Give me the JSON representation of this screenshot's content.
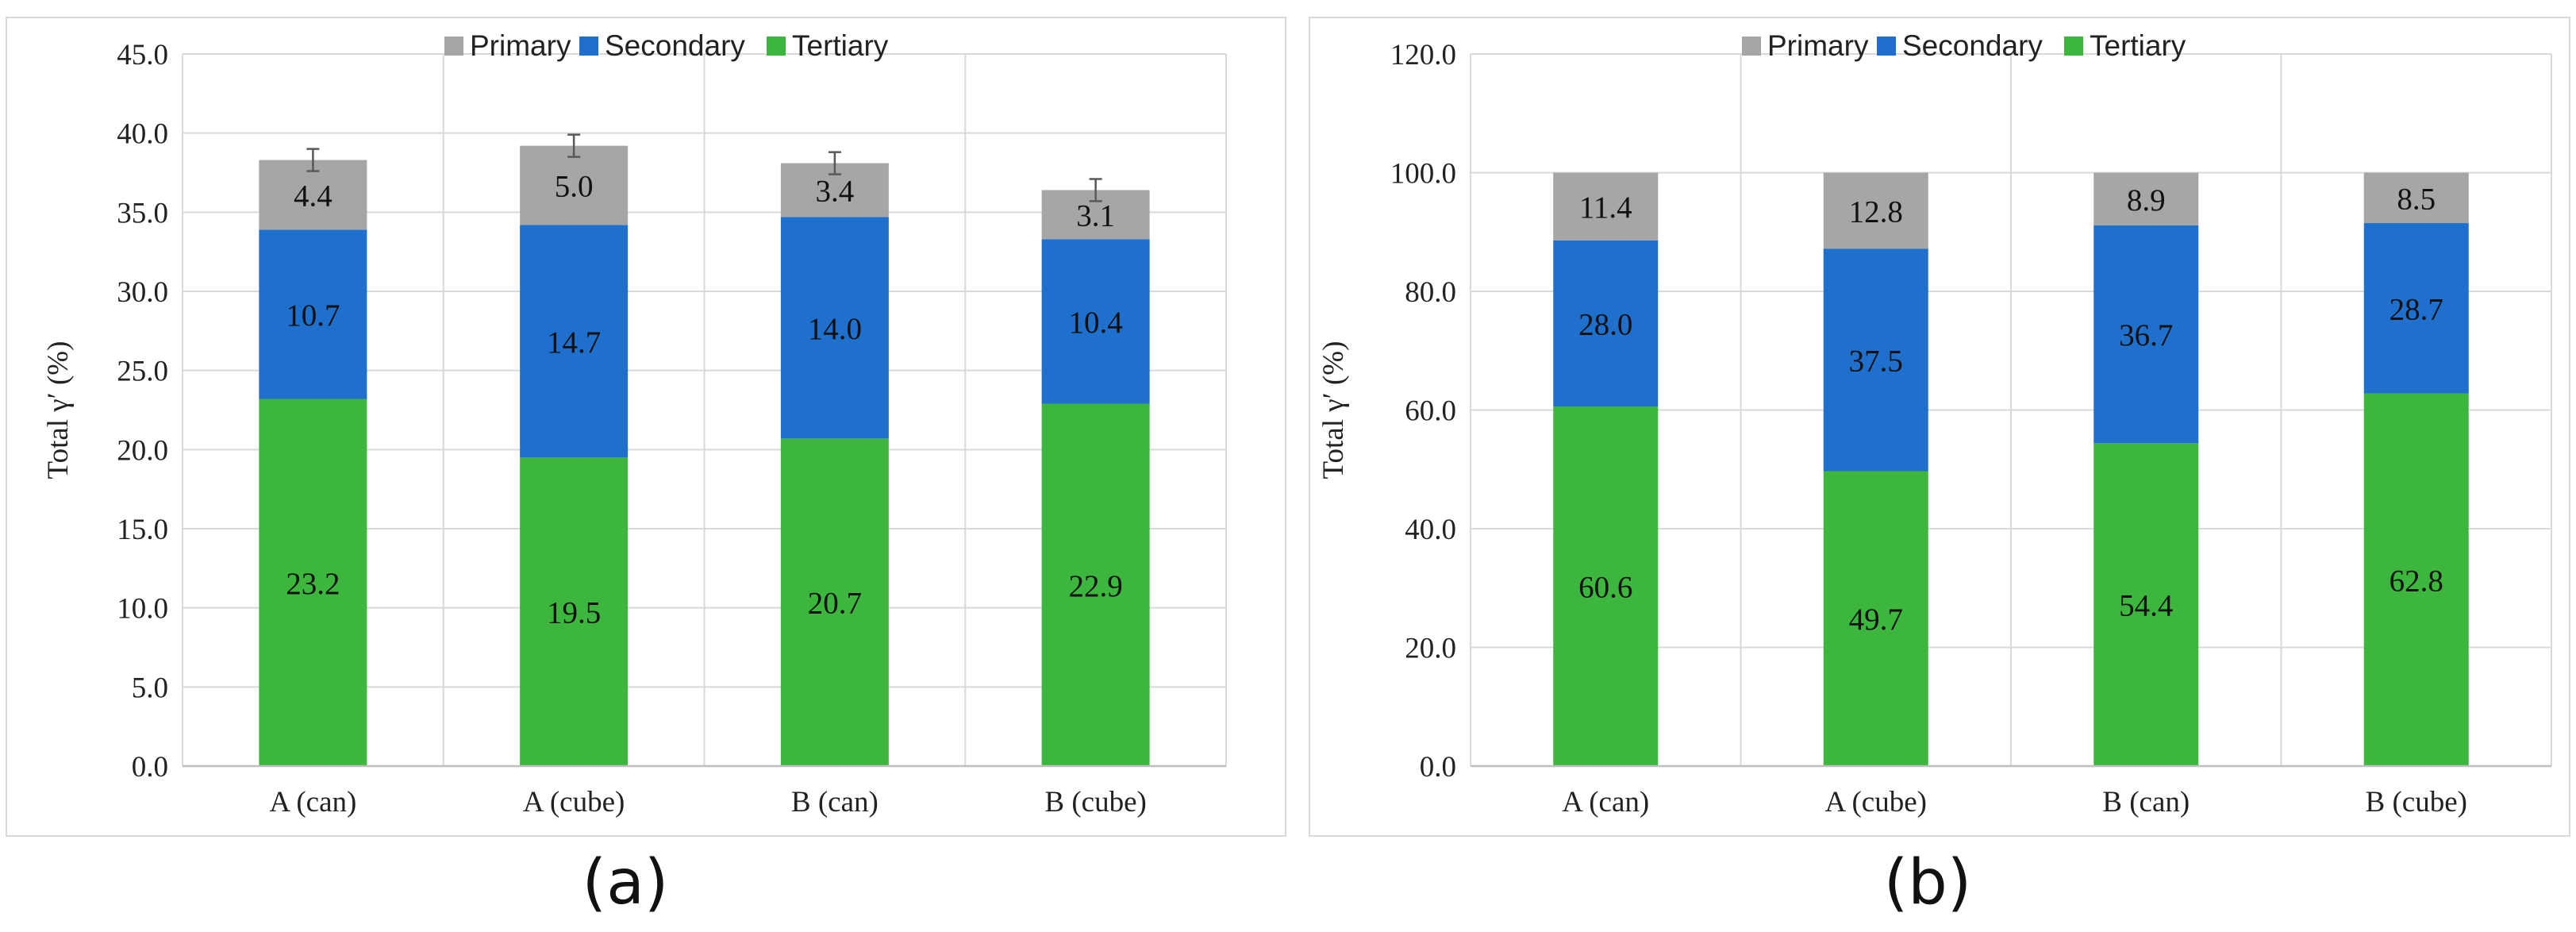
{
  "chart_data": [
    {
      "type": "bar",
      "stacked": true,
      "panel_label": "(a)",
      "ylabel": "Total γ′ (%)",
      "ylim": [
        0,
        45
      ],
      "ytick_step": 5,
      "yticks": [
        "0.0",
        "5.0",
        "10.0",
        "15.0",
        "20.0",
        "25.0",
        "30.0",
        "35.0",
        "40.0",
        "45.0"
      ],
      "categories": [
        "A (can)",
        "A (cube)",
        "B (can)",
        "B (cube)"
      ],
      "series": [
        {
          "name": "Tertiary",
          "color": "#3db63d",
          "values": [
            23.2,
            19.5,
            20.7,
            22.9
          ],
          "labels": [
            "23.2",
            "19.5",
            "20.7",
            "22.9"
          ]
        },
        {
          "name": "Secondary",
          "color": "#1f6fcc",
          "values": [
            10.7,
            14.7,
            14.0,
            10.4
          ],
          "labels": [
            "10.7",
            "14.7",
            "14.0",
            "10.4"
          ]
        },
        {
          "name": "Primary",
          "color": "#a6a6a6",
          "values": [
            4.4,
            5.0,
            3.4,
            3.1
          ],
          "labels": [
            "4.4",
            "5.0",
            "3.4",
            "3.1"
          ]
        }
      ],
      "error_bars": [
        0.7,
        0.7,
        0.7,
        0.7
      ],
      "legend": [
        "Primary",
        "Secondary",
        "Tertiary"
      ]
    },
    {
      "type": "bar",
      "stacked": true,
      "panel_label": "(b)",
      "ylabel": "Total γ′ (%)",
      "ylim": [
        0,
        120
      ],
      "ytick_step": 20,
      "yticks": [
        "0.0",
        "20.0",
        "40.0",
        "60.0",
        "80.0",
        "100.0",
        "120.0"
      ],
      "categories": [
        "A (can)",
        "A (cube)",
        "B (can)",
        "B (cube)"
      ],
      "series": [
        {
          "name": "Tertiary",
          "color": "#3db63d",
          "values": [
            60.6,
            49.7,
            54.4,
            62.8
          ],
          "labels": [
            "60.6",
            "49.7",
            "54.4",
            "62.8"
          ]
        },
        {
          "name": "Secondary",
          "color": "#1f6fcc",
          "values": [
            28.0,
            37.5,
            36.7,
            28.7
          ],
          "labels": [
            "28.0",
            "37.5",
            "36.7",
            "28.7"
          ]
        },
        {
          "name": "Primary",
          "color": "#a6a6a6",
          "values": [
            11.4,
            12.8,
            8.9,
            8.5
          ],
          "labels": [
            "11.4",
            "12.8",
            "8.9",
            "8.5"
          ]
        }
      ],
      "error_bars": null,
      "legend": [
        "Primary",
        "Secondary",
        "Tertiary"
      ]
    }
  ]
}
